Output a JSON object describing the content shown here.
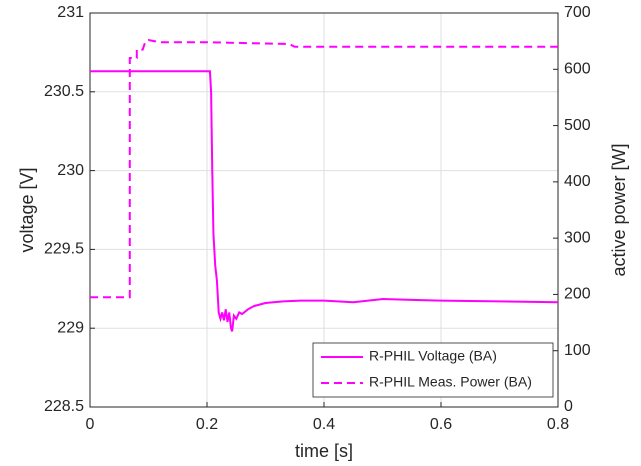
{
  "chart_data": {
    "type": "line",
    "xlabel": "time [s]",
    "ylabel": "voltage [V]",
    "y2label": "active power [W]",
    "xlim": [
      0,
      0.8
    ],
    "xticks": [
      0,
      0.2,
      0.4,
      0.6,
      0.8
    ],
    "ylim": [
      228.5,
      231
    ],
    "yticks": [
      228.5,
      229,
      229.5,
      230,
      230.5,
      231
    ],
    "y2lim": [
      0,
      700
    ],
    "y2ticks": [
      0,
      100,
      200,
      300,
      400,
      500,
      600,
      700
    ],
    "grid": true,
    "legend": "lower right",
    "series": [
      {
        "name": "R-PHIL Voltage (BA)",
        "color": "#ff00ff",
        "style": "solid",
        "x": [
          0,
          0.205,
          0.207,
          0.209,
          0.211,
          0.214,
          0.217,
          0.22,
          0.223,
          0.226,
          0.229,
          0.232,
          0.235,
          0.238,
          0.241,
          0.243,
          0.246,
          0.25,
          0.255,
          0.26,
          0.27,
          0.28,
          0.3,
          0.33,
          0.36,
          0.4,
          0.45,
          0.5,
          0.55,
          0.6,
          0.7,
          0.8
        ],
        "values": [
          230.63,
          230.63,
          230.5,
          230.0,
          229.6,
          229.4,
          229.3,
          229.1,
          229.06,
          229.1,
          229.05,
          229.12,
          229.04,
          229.1,
          229.0,
          228.98,
          229.08,
          229.06,
          229.1,
          229.09,
          229.12,
          229.14,
          229.16,
          229.17,
          229.175,
          229.175,
          229.165,
          229.185,
          229.18,
          229.175,
          229.17,
          229.165
        ]
      },
      {
        "name": "R-PHIL Meas. Power (BA)",
        "color": "#ff00ff",
        "style": "dashed",
        "axis": "y2",
        "x": [
          0,
          0.068,
          0.068,
          0.08,
          0.08,
          0.09,
          0.095,
          0.1,
          0.12,
          0.2,
          0.34,
          0.35,
          0.8
        ],
        "values": [
          195,
          195,
          620,
          620,
          635,
          635,
          650,
          652,
          648,
          648,
          645,
          640,
          640
        ]
      }
    ]
  }
}
